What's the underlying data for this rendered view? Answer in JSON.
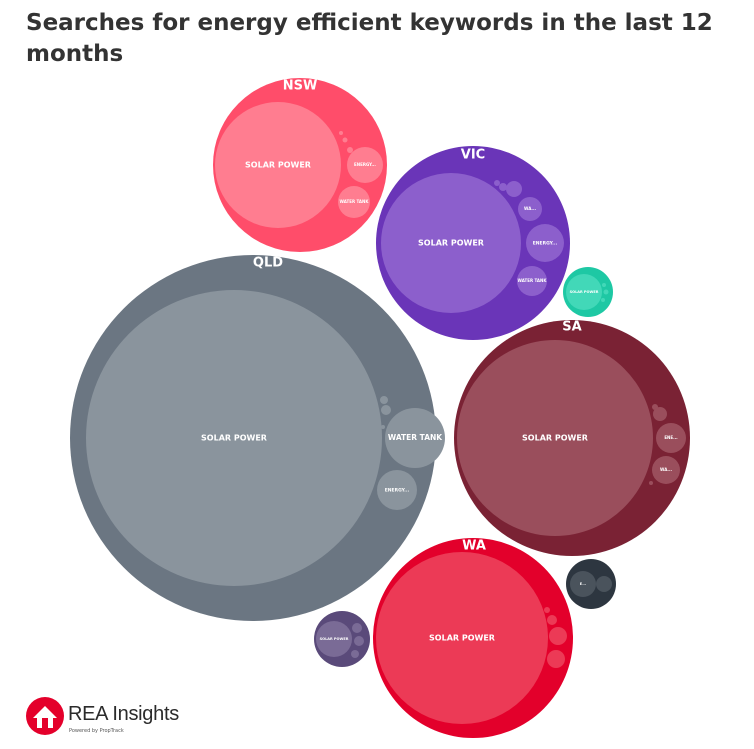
{
  "title": "Searches for energy efficient keywords in the last 12 months",
  "groups": [
    {
      "label": "NSW",
      "items": [
        "SOLAR POWER",
        "ENERGY...",
        "WATER TANK"
      ]
    },
    {
      "label": "VIC",
      "items": [
        "SOLAR POWER",
        "WA...",
        "ENERGY...",
        "WATER TANK"
      ]
    },
    {
      "label": "QLD",
      "items": [
        "SOLAR POWER",
        "WATER TANK",
        "ENERGY..."
      ]
    },
    {
      "items": [
        "SOLAR POWER"
      ]
    },
    {
      "label": "SA",
      "items": [
        "SOLAR POWER",
        "ENE...",
        "WA..."
      ]
    },
    {
      "label": "WA",
      "items": [
        "SOLAR POWER"
      ]
    },
    {
      "items": [
        "E..."
      ]
    },
    {
      "items": [
        "SOLAR POWER"
      ]
    }
  ],
  "logo": {
    "name": "REA Insights",
    "tagline": "Powered by PropTrack"
  }
}
